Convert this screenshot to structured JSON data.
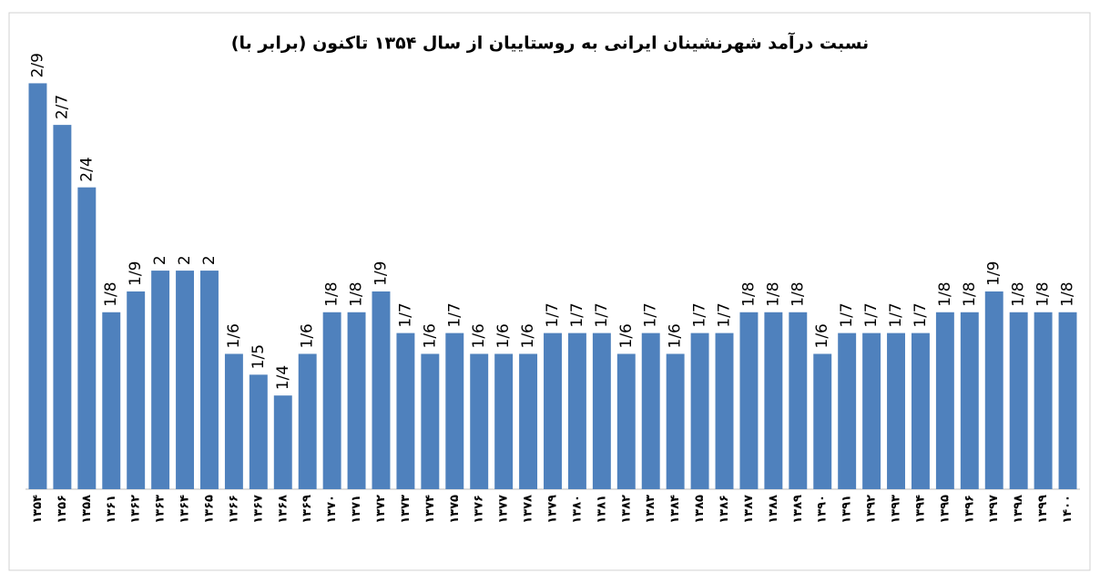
{
  "chart_data": {
    "type": "bar",
    "title": "نسبت درآمد شهرنشینان ایرانی به روستاییان از سال ۱۳۵۴ تاکنون (برابر با)",
    "categories": [
      "۱۳۵۴",
      "۱۳۵۶",
      "۱۳۵۸",
      "۱۳۶۱",
      "۱۳۶۲",
      "۱۳۶۳",
      "۱۳۶۴",
      "۱۳۶۵",
      "۱۳۶۶",
      "۱۳۶۷",
      "۱۳۶۸",
      "۱۳۶۹",
      "۱۳۷۰",
      "۱۳۷۱",
      "۱۳۷۲",
      "۱۳۷۳",
      "۱۳۷۴",
      "۱۳۷۵",
      "۱۳۷۶",
      "۱۳۷۷",
      "۱۳۷۸",
      "۱۳۷۹",
      "۱۳۸۰",
      "۱۳۸۱",
      "۱۳۸۲",
      "۱۳۸۳",
      "۱۳۸۴",
      "۱۳۸۵",
      "۱۳۸۶",
      "۱۳۸۷",
      "۱۳۸۸",
      "۱۳۸۹",
      "۱۳۹۰",
      "۱۳۹۱",
      "۱۳۹۲",
      "۱۳۹۳",
      "۱۳۹۴",
      "۱۳۹۵",
      "۱۳۹۶",
      "۱۳۹۷",
      "۱۳۹۸",
      "۱۳۹۹",
      "۱۴۰۰"
    ],
    "values": [
      2.9,
      2.7,
      2.4,
      1.8,
      1.9,
      2,
      2,
      2,
      1.6,
      1.5,
      1.4,
      1.6,
      1.8,
      1.8,
      1.9,
      1.7,
      1.6,
      1.7,
      1.6,
      1.6,
      1.6,
      1.7,
      1.7,
      1.7,
      1.6,
      1.7,
      1.6,
      1.7,
      1.7,
      1.8,
      1.8,
      1.8,
      1.6,
      1.7,
      1.7,
      1.7,
      1.7,
      1.8,
      1.8,
      1.9,
      1.8,
      1.8,
      1.8
    ],
    "value_labels": [
      "2/9",
      "2/7",
      "2/4",
      "1/8",
      "1/9",
      "2",
      "2",
      "2",
      "1/6",
      "1/5",
      "1/4",
      "1/6",
      "1/8",
      "1/8",
      "1/9",
      "1/7",
      "1/6",
      "1/7",
      "1/6",
      "1/6",
      "1/6",
      "1/7",
      "1/7",
      "1/7",
      "1/6",
      "1/7",
      "1/6",
      "1/7",
      "1/7",
      "1/8",
      "1/8",
      "1/8",
      "1/6",
      "1/7",
      "1/7",
      "1/7",
      "1/7",
      "1/8",
      "1/8",
      "1/9",
      "1/8",
      "1/8",
      "1/8"
    ],
    "color": "#4f81bd",
    "ylim": [
      0.95,
      2.95
    ]
  }
}
